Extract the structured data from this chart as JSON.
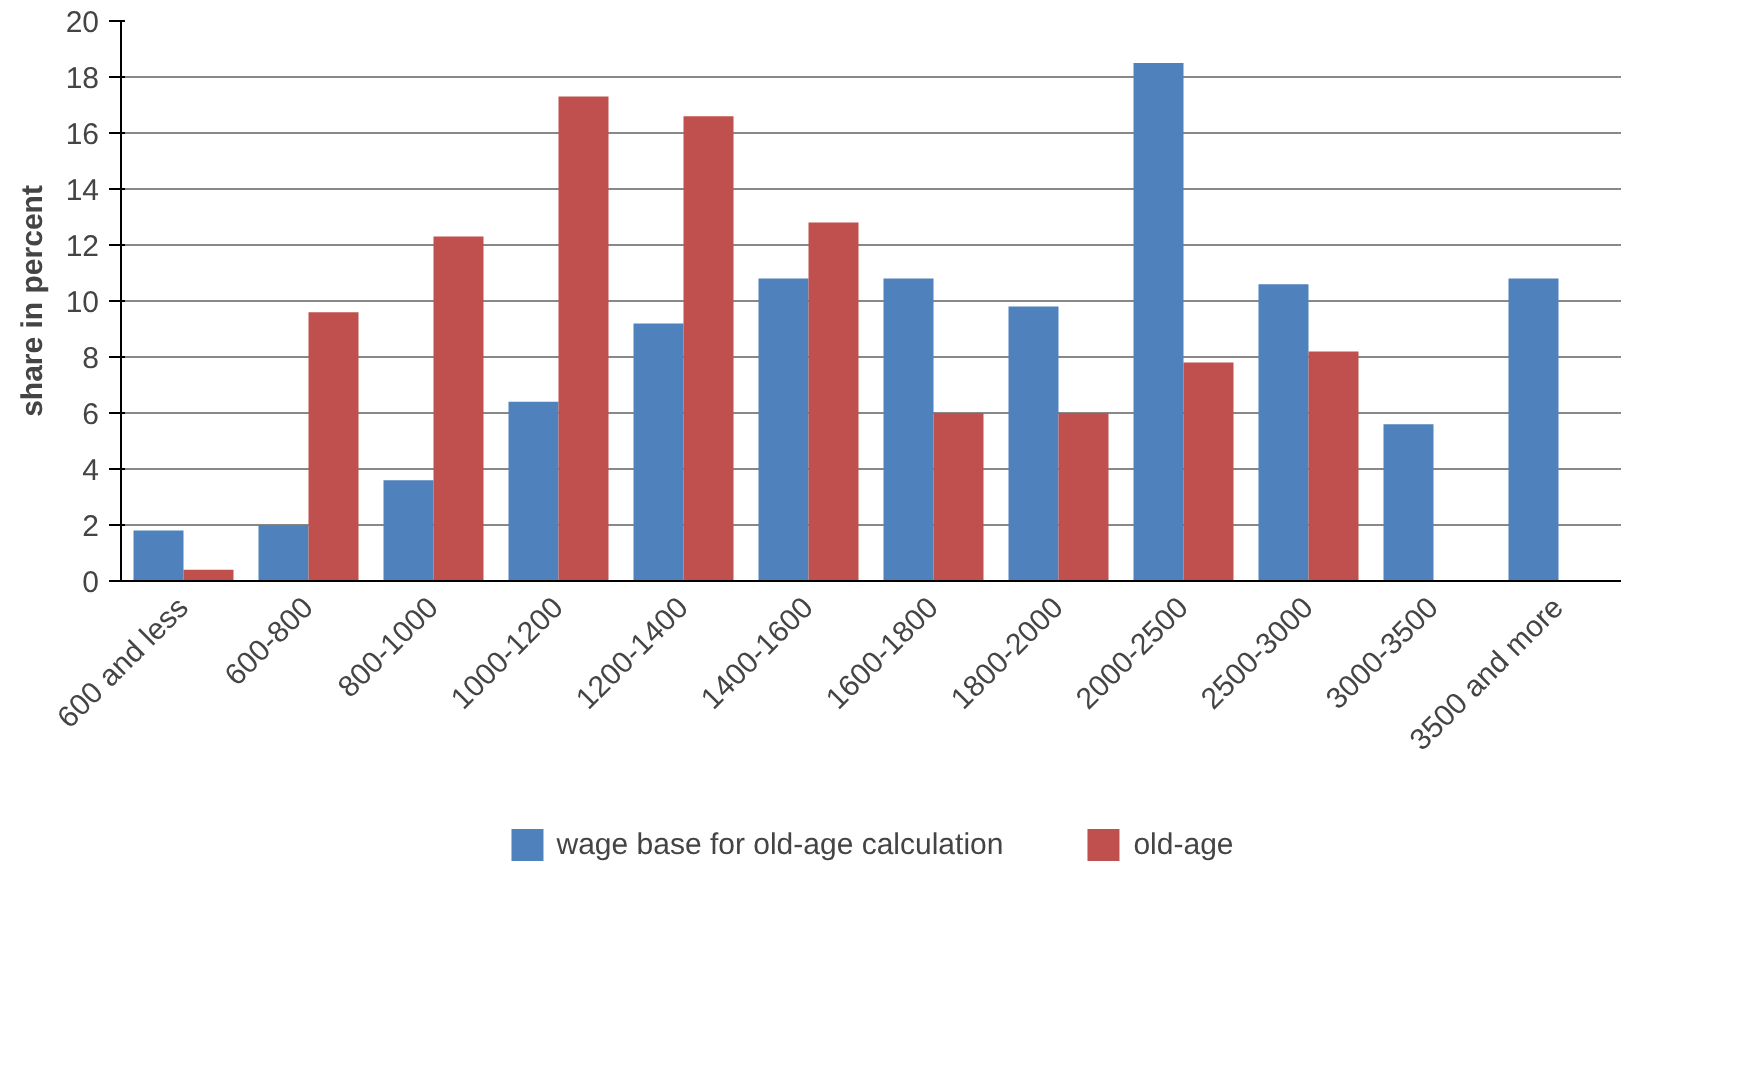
{
  "chart_data": {
    "type": "bar",
    "ylabel": "share in percent",
    "categories": [
      "600 and less",
      "600-800",
      "800-1000",
      "1000-1200",
      "1200-1400",
      "1400-1600",
      "1600-1800",
      "1800-2000",
      "2000-2500",
      "2500-3000",
      "3000-3500",
      "3500 and more"
    ],
    "series": [
      {
        "name": "wage base for old-age calculation",
        "color": "#4f81bd",
        "values": [
          1.8,
          2.0,
          3.6,
          6.4,
          9.2,
          10.8,
          10.8,
          9.8,
          18.5,
          10.6,
          5.6,
          10.8
        ]
      },
      {
        "name": "old-age",
        "color": "#c0504d",
        "values": [
          0.4,
          9.6,
          12.3,
          17.3,
          16.6,
          12.8,
          6.0,
          6.0,
          7.8,
          8.2,
          null,
          null
        ]
      }
    ],
    "ylim": [
      0,
      20
    ],
    "yticks": [
      0,
      2,
      4,
      6,
      8,
      10,
      12,
      14,
      16,
      18,
      20
    ],
    "grid": "y",
    "legend": "bottom"
  }
}
